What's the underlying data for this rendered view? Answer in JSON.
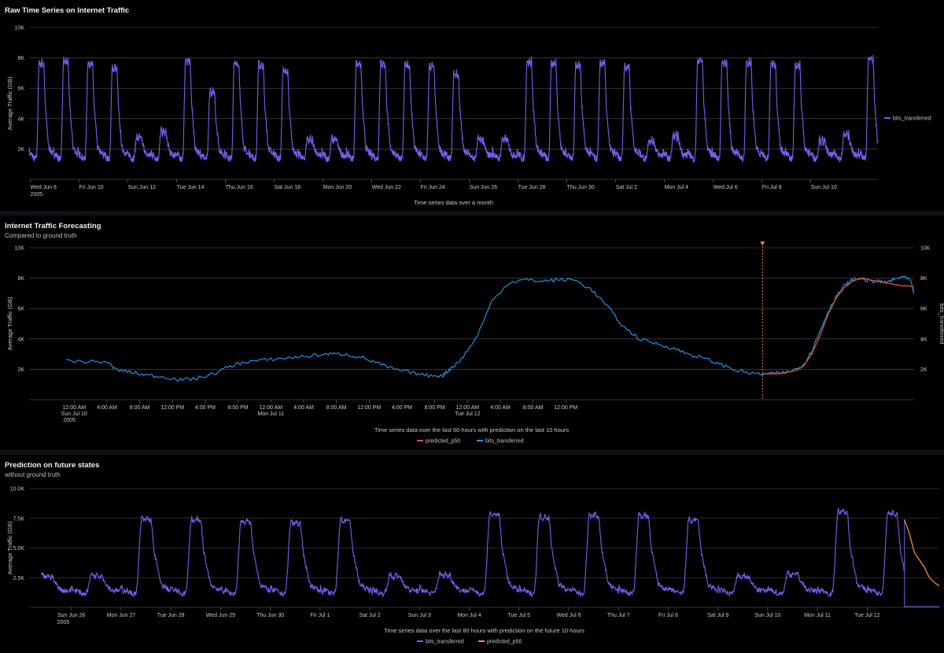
{
  "colors": {
    "purple": "#7b5cf0",
    "blue": "#1f9bf0",
    "red": "#e8483c",
    "orange": "#f58a3c",
    "grid": "#555",
    "bg": "#000000"
  },
  "panels": [
    {
      "title": "Raw Time Series on Internet Traffic",
      "subtitle": "",
      "chart_data": {
        "type": "line",
        "xlabel": "Time series data over a month",
        "ylabel": "Average Traffic (GB)",
        "ylim": [
          0,
          10000
        ],
        "yticks": [
          "10K",
          "8K",
          "6K",
          "4K",
          "2K"
        ],
        "ytick_values": [
          10000,
          8000,
          6000,
          4000,
          2000
        ],
        "xticks": [
          "Wed Jun 8",
          "Fri Jun 10",
          "Sun Jun 12",
          "Tue Jun 14",
          "Thu Jun 16",
          "Sat Jun 18",
          "Mon Jun 20",
          "Wed Jun 22",
          "Fri Jun 24",
          "Sun Jun 26",
          "Tue Jun 28",
          "Thu Jun 30",
          "Sat Jul 2",
          "Mon Jul 4",
          "Wed Jul 6",
          "Fri Jul 8",
          "Sun Jul 10"
        ],
        "xtick_second_line": "2005",
        "legend_position": "right",
        "series": [
          {
            "name": "bits_transferred",
            "color_key": "purple",
            "start_day": 0,
            "end_day": 34.8,
            "daily_peaks": [
              7800,
              7900,
              7800,
              7500,
              2900,
              3300,
              8000,
              5900,
              7800,
              7700,
              7300,
              2800,
              2800,
              7800,
              7800,
              7700,
              7600,
              7100,
              2800,
              2800,
              7900,
              7800,
              7700,
              7800,
              7600,
              2700,
              3000,
              8000,
              7900,
              7900,
              7800,
              7700,
              2700,
              3100,
              8100,
              8200
            ],
            "night_min": 1500
          }
        ]
      }
    },
    {
      "title": "Internet Traffic Forecasting",
      "subtitle": "Compared to ground truth",
      "chart_data": {
        "type": "line",
        "xlabel": "Time series data over the last 60 hours with prediction on the last 10 hours",
        "ylabel": "Average Traffic (GB)",
        "ylabel_right": "bits_transferred",
        "ylim": [
          0,
          10000
        ],
        "yticks": [
          "10K",
          "8K",
          "6K",
          "4K",
          "2K"
        ],
        "ytick_values": [
          10000,
          8000,
          6000,
          4000,
          2000
        ],
        "xticks": [
          "12:00 AM",
          "4:00 AM",
          "8:00 AM",
          "12:00 PM",
          "4:00 PM",
          "8:00 PM",
          "12:00 AM",
          "4:00 AM",
          "8:00 AM",
          "12:00 PM",
          "4:00 PM",
          "8:00 PM",
          "12:00 AM",
          "4:00 AM",
          "8:00 AM",
          "12:00 PM"
        ],
        "xtick_sublabels": [
          "Sun Jul 10",
          "",
          "",
          "",
          "",
          "",
          "Mon Jul 11",
          "",
          "",
          "",
          "",
          "",
          "Tue Jul 12",
          "",
          "",
          ""
        ],
        "xtick_third_line": "2005",
        "prediction_start": "5:00 AM Tue Jul 12",
        "legend": [
          "predicted_p50",
          "bits_transferred"
        ],
        "series": [
          {
            "name": "bits_transferred",
            "color_key": "blue",
            "points": [
              [
                0,
                2600
              ],
              [
                2,
                2500
              ],
              [
                5,
                2500
              ],
              [
                6,
                2000
              ],
              [
                8,
                1800
              ],
              [
                10,
                1600
              ],
              [
                12,
                1500
              ],
              [
                14,
                1300
              ],
              [
                16,
                1400
              ],
              [
                18,
                1700
              ],
              [
                20,
                2200
              ],
              [
                22,
                2500
              ],
              [
                24,
                2600
              ],
              [
                26,
                2700
              ],
              [
                28,
                2800
              ],
              [
                30,
                2900
              ],
              [
                32,
                3000
              ],
              [
                34,
                3000
              ],
              [
                36,
                2800
              ],
              [
                38,
                2400
              ],
              [
                40,
                2000
              ],
              [
                42,
                1800
              ],
              [
                44,
                1600
              ],
              [
                46,
                1600
              ],
              [
                47,
                2100
              ],
              [
                48,
                2500
              ],
              [
                50,
                4000
              ],
              [
                52,
                6500
              ],
              [
                54,
                7700
              ],
              [
                56,
                7900
              ],
              [
                58,
                7800
              ],
              [
                60,
                7900
              ],
              [
                62,
                7900
              ],
              [
                64,
                7300
              ],
              [
                66,
                6200
              ],
              [
                68,
                4800
              ],
              [
                70,
                4000
              ],
              [
                72,
                3700
              ],
              [
                74,
                3400
              ],
              [
                76,
                3000
              ],
              [
                78,
                2700
              ],
              [
                80,
                2300
              ],
              [
                82,
                1900
              ],
              [
                84,
                1700
              ],
              [
                86,
                1700
              ],
              [
                88,
                1800
              ],
              [
                89,
                2000
              ],
              [
                90,
                2300
              ],
              [
                91,
                3200
              ],
              [
                92,
                4500
              ],
              [
                93,
                5800
              ],
              [
                94,
                6800
              ],
              [
                95,
                7500
              ],
              [
                96,
                7900
              ],
              [
                97,
                8000
              ],
              [
                98,
                7800
              ],
              [
                99,
                7800
              ],
              [
                100,
                7700
              ],
              [
                101,
                7900
              ],
              [
                102,
                8100
              ],
              [
                103,
                7900
              ],
              [
                103.5,
                7000
              ]
            ]
          },
          {
            "name": "predicted_p50",
            "color_key": "red",
            "points": [
              [
                85,
                1700
              ],
              [
                87,
                1700
              ],
              [
                89,
                1900
              ],
              [
                90,
                2200
              ],
              [
                91,
                3000
              ],
              [
                92,
                4200
              ],
              [
                93,
                5600
              ],
              [
                94,
                6700
              ],
              [
                95,
                7400
              ],
              [
                96,
                7800
              ],
              [
                97,
                8000
              ],
              [
                98,
                7900
              ],
              [
                99,
                7800
              ],
              [
                100,
                7700
              ],
              [
                101,
                7600
              ],
              [
                102,
                7500
              ],
              [
                103,
                7500
              ],
              [
                103.5,
                7400
              ]
            ]
          }
        ],
        "x_hours_range": [
          -4.5,
          103.5
        ]
      }
    },
    {
      "title": "Prediction on future states",
      "subtitle": "without ground truth",
      "chart_data": {
        "type": "line",
        "xlabel": "Time series data over the last 80 hours with prediction on the future 10 hours",
        "ylabel": "Average Traffic (GB)",
        "ylim": [
          0,
          10000
        ],
        "yticks": [
          "10.0K",
          "7.5K",
          "5.0K",
          "2.5K"
        ],
        "ytick_values": [
          10000,
          7500,
          5000,
          2500
        ],
        "xticks": [
          "Sun Jun 26",
          "Mon Jun 27",
          "Tue Jun 28",
          "Wed Jun 29",
          "Thu Jun 30",
          "Fri Jul 1",
          "Sat Jul 2",
          "Sun Jul 3",
          "Mon Jul 4",
          "Tue Jul 5",
          "Wed Jul 6",
          "Thu Jul 7",
          "Fri Jul 8",
          "Sat Jul 9",
          "Sun Jul 10",
          "Mon Jul 11",
          "Tue Jul 12"
        ],
        "xtick_second_line": "2005",
        "legend": [
          "bits_transferred",
          "predicted_p50"
        ],
        "series": [
          {
            "name": "bits_transferred",
            "color_key": "purple",
            "start_day": -0.6,
            "end_day": 16.75,
            "daily_peaks": [
              2800,
              2900,
              7600,
              7500,
              7400,
              7300,
              7500,
              2800,
              2900,
              8000,
              7800,
              7900,
              7900,
              7500,
              2800,
              3000,
              8200,
              8100
            ],
            "night_min": 1300
          },
          {
            "name": "predicted_p50",
            "color_key": "orange",
            "points_days": [
              [
                16.75,
                7400
              ],
              [
                16.85,
                6200
              ],
              [
                16.95,
                4600
              ],
              [
                17.05,
                4000
              ],
              [
                17.15,
                3400
              ],
              [
                17.25,
                2500
              ],
              [
                17.35,
                2100
              ],
              [
                17.45,
                1800
              ]
            ]
          }
        ]
      }
    }
  ]
}
